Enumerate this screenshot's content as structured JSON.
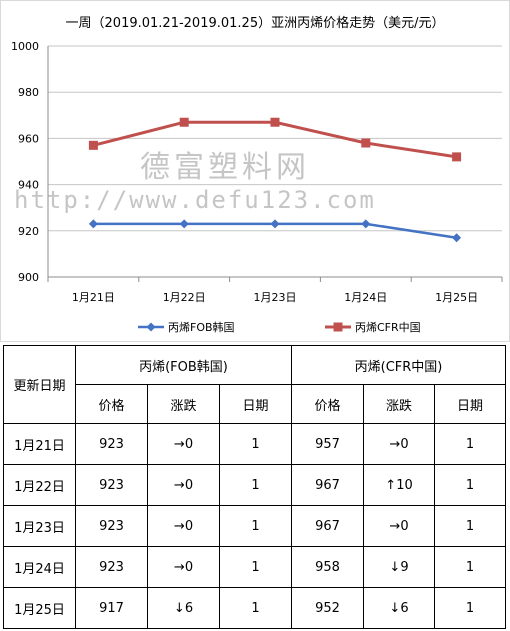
{
  "watermark": {
    "cn": "德富塑料网",
    "url": "http://www.defu123.com"
  },
  "chart_data": {
    "type": "line",
    "title": "一周（2019.01.21-2019.01.25）亚洲丙烯价格走势（美元/元）",
    "categories": [
      "1月21日",
      "1月22日",
      "1月23日",
      "1月24日",
      "1月25日"
    ],
    "series": [
      {
        "name": "丙烯FOB韩国",
        "values": [
          923,
          923,
          923,
          923,
          917
        ],
        "color": "#4472C4",
        "marker": "diamond"
      },
      {
        "name": "丙烯CFR中国",
        "values": [
          957,
          967,
          967,
          958,
          952
        ],
        "color": "#C0504D",
        "marker": "square"
      }
    ],
    "ylim": [
      900,
      1000
    ],
    "yticks": [
      900,
      920,
      940,
      960,
      980,
      1000
    ],
    "grid": true,
    "legend": "bottom"
  },
  "table": {
    "date_header": "更新日期",
    "group_fob": "丙烯(FOB韩国)",
    "group_cfr": "丙烯(CFR中国)",
    "sub_headers": [
      "价格",
      "涨跌",
      "日期",
      "价格",
      "涨跌",
      "日期"
    ],
    "rows": [
      {
        "date": "1月21日",
        "fob_price": "923",
        "fob_arrow": "→",
        "fob_change": "0",
        "fob_day": "1",
        "cfr_price": "957",
        "cfr_arrow": "→",
        "cfr_change": "0",
        "cfr_day": "1"
      },
      {
        "date": "1月22日",
        "fob_price": "923",
        "fob_arrow": "→",
        "fob_change": "0",
        "fob_day": "1",
        "cfr_price": "967",
        "cfr_arrow": "↑",
        "cfr_change": "10",
        "cfr_day": "1"
      },
      {
        "date": "1月23日",
        "fob_price": "923",
        "fob_arrow": "→",
        "fob_change": "0",
        "fob_day": "1",
        "cfr_price": "967",
        "cfr_arrow": "→",
        "cfr_change": "0",
        "cfr_day": "1"
      },
      {
        "date": "1月24日",
        "fob_price": "923",
        "fob_arrow": "→",
        "fob_change": "0",
        "fob_day": "1",
        "cfr_price": "958",
        "cfr_arrow": "↓",
        "cfr_change": "9",
        "cfr_day": "1"
      },
      {
        "date": "1月25日",
        "fob_price": "917",
        "fob_arrow": "↓",
        "fob_change": "6",
        "fob_day": "1",
        "cfr_price": "952",
        "cfr_arrow": "↓",
        "cfr_change": "6",
        "cfr_day": "1"
      }
    ]
  }
}
